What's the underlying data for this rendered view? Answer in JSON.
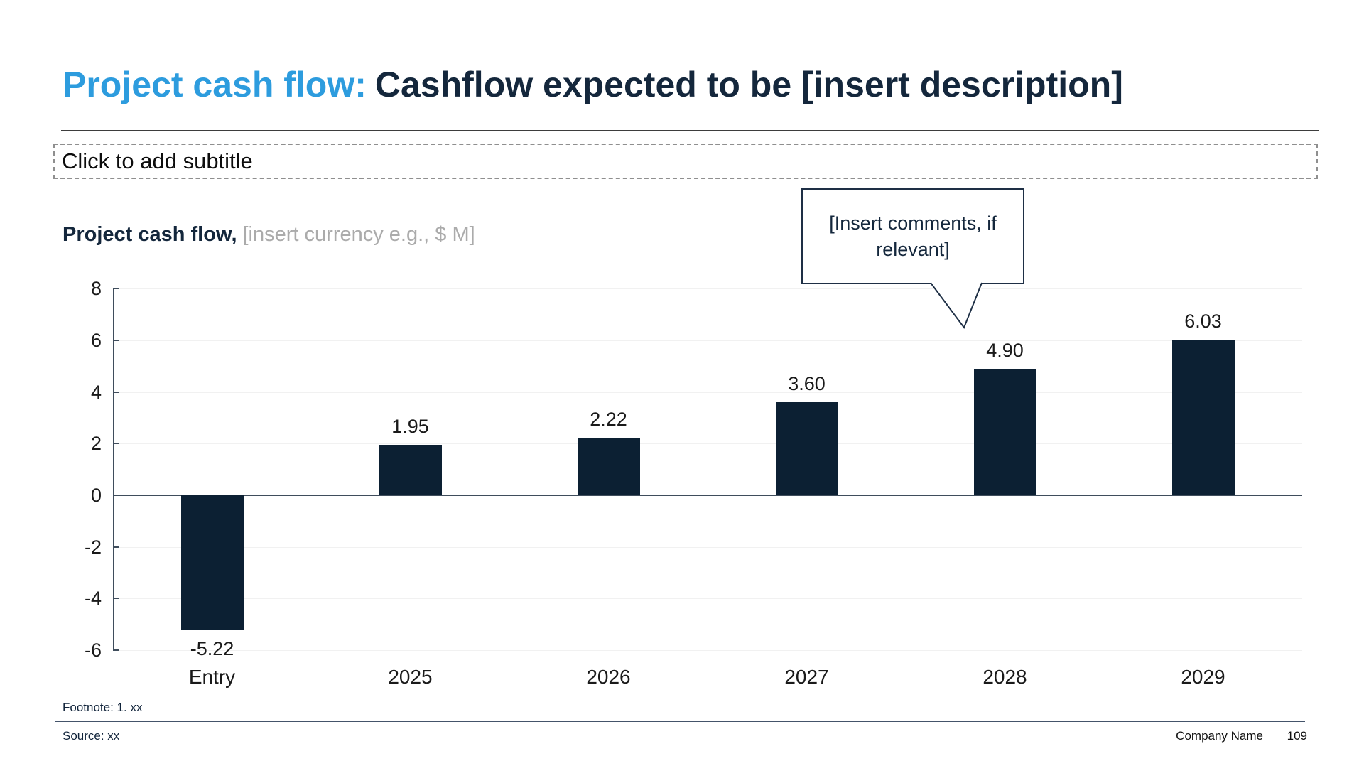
{
  "title": {
    "accent": "Project cash flow:",
    "rest": "Cashflow expected to be [insert description]"
  },
  "subtitle": {
    "placeholder": "Click to add subtitle"
  },
  "chart_heading": {
    "label": "Project cash flow,",
    "unit_hint": "[insert currency e.g., $ M]"
  },
  "callout": {
    "text": "[Insert comments, if relevant]"
  },
  "chart_data": {
    "type": "bar",
    "categories": [
      "Entry",
      "2025",
      "2026",
      "2027",
      "2028",
      "2029"
    ],
    "values": [
      -5.22,
      1.95,
      2.22,
      3.6,
      4.9,
      6.03
    ],
    "value_labels": [
      "-5.22",
      "1.95",
      "2.22",
      "3.60",
      "4.90",
      "6.03"
    ],
    "title": "Project cash flow, [insert currency e.g., $ M]",
    "xlabel": "",
    "ylabel": "",
    "ylim": [
      -6,
      8
    ],
    "yticks": [
      8,
      6,
      4,
      2,
      0,
      -2,
      -4,
      -6
    ],
    "grid": true,
    "legend": false,
    "bar_color": "#0C2033"
  },
  "footer": {
    "footnote": "Footnote: 1. xx",
    "source": "Source: xx",
    "company": "Company Name",
    "page": "109"
  },
  "colors": {
    "accent_blue": "#2D9CDE",
    "navy": "#14273C",
    "bar_navy": "#0C2033",
    "axis": "#3F4D5C",
    "gridline": "#F1F1F1",
    "placeholder_gray": "#ABABAB"
  }
}
